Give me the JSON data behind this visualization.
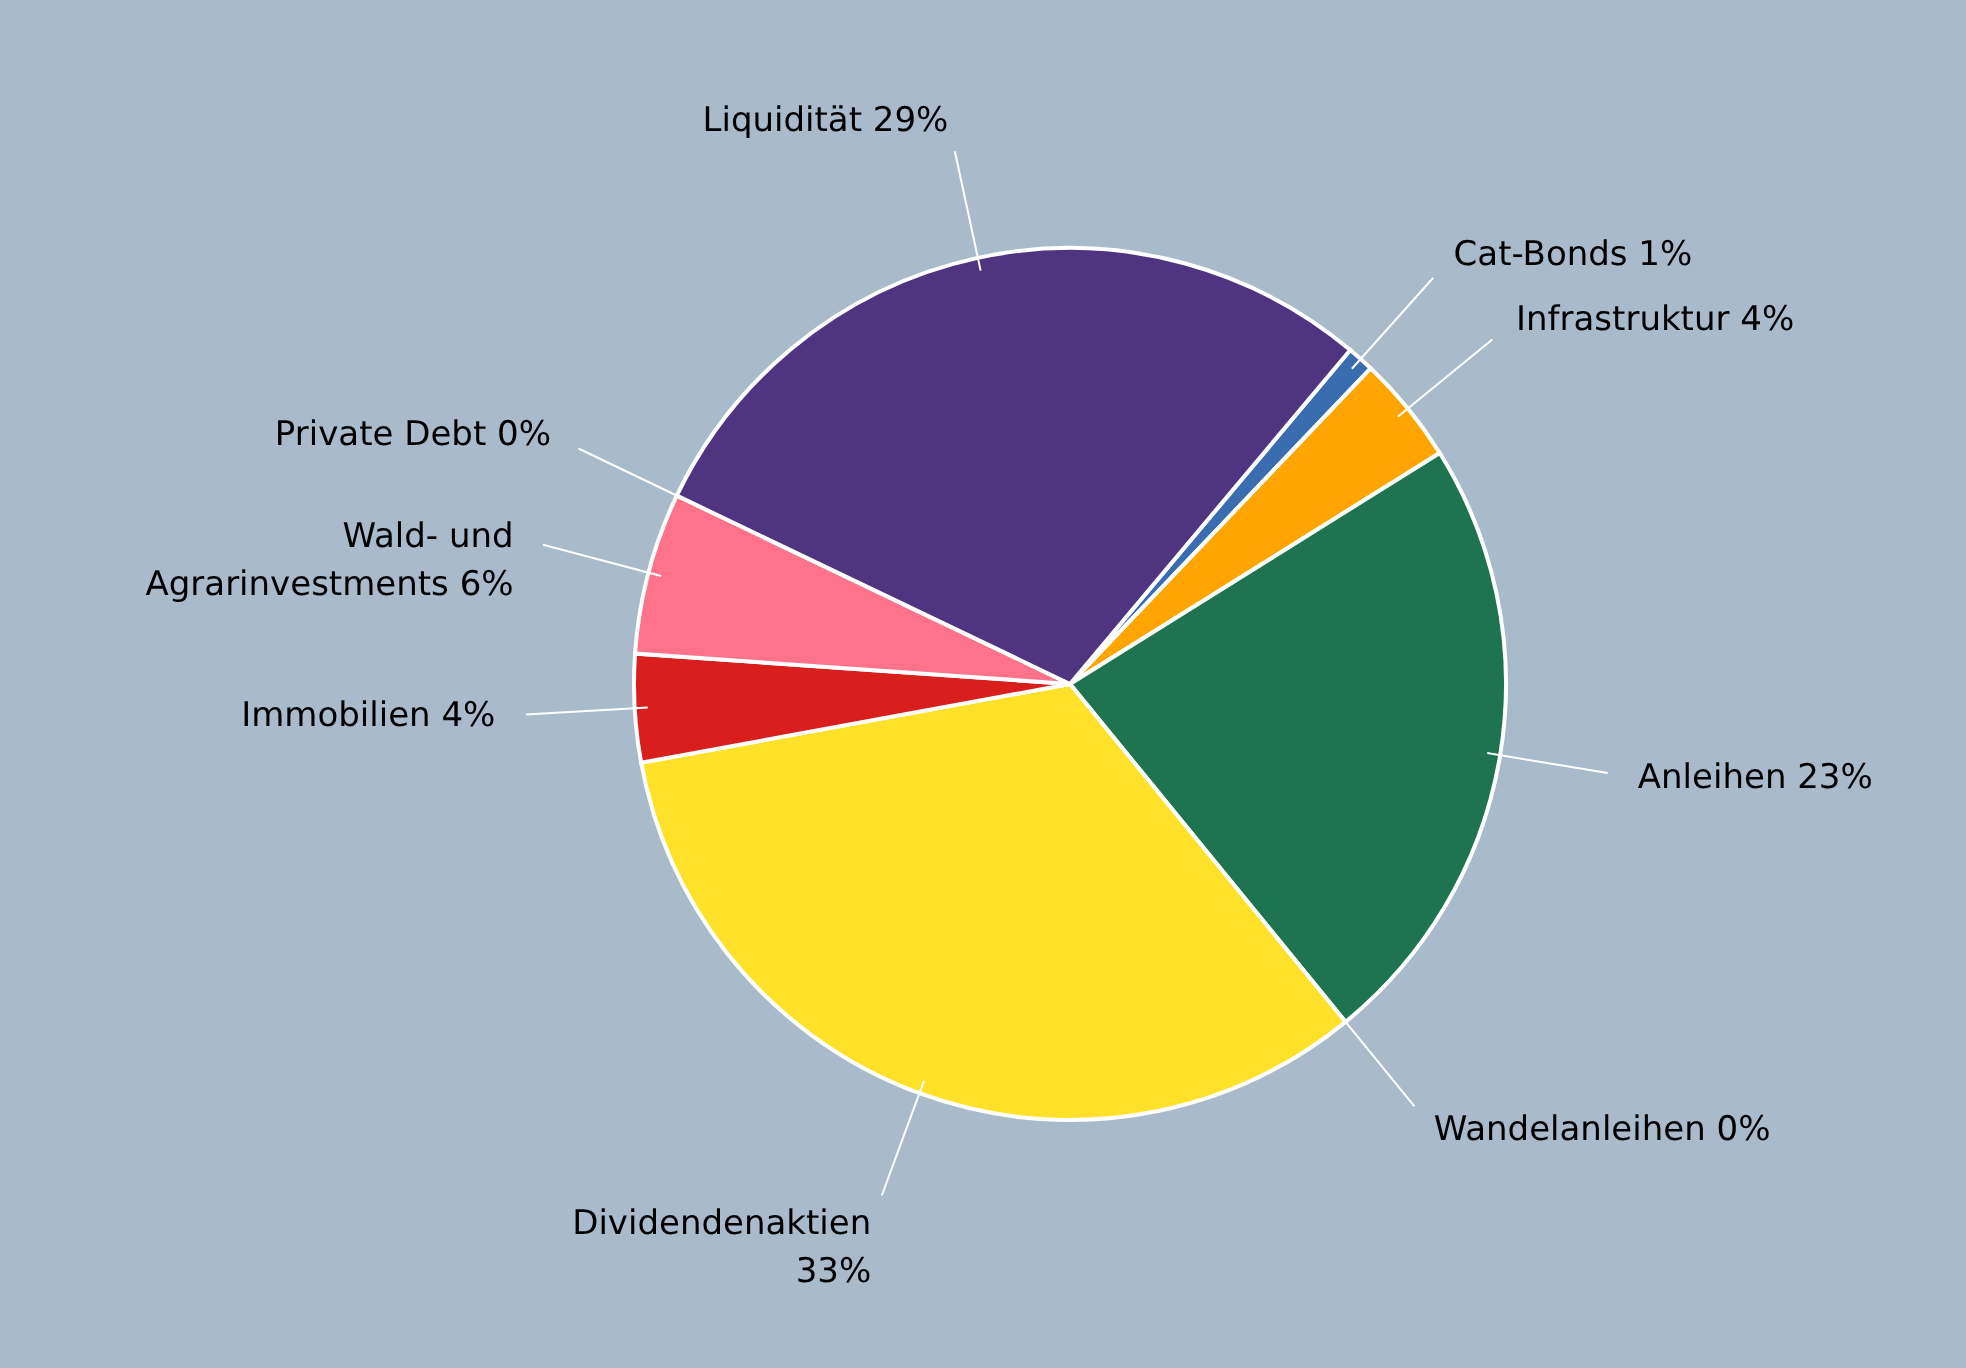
{
  "chart_data": {
    "type": "pie",
    "categories": [
      "Cat-Bonds",
      "Infrastruktur",
      "Anleihen",
      "Wandelanleihen",
      "Dividendenaktien",
      "Immobilien",
      "Wald- und Agrarinvestments",
      "Private Debt",
      "Liquidität"
    ],
    "values": [
      1,
      4,
      23,
      0,
      33,
      4,
      6,
      0,
      29
    ],
    "value_labels": [
      "1%",
      "4%",
      "23%",
      "0%",
      "33%",
      "4%",
      "6%",
      "0%",
      "29%"
    ],
    "colors": [
      "#3a6db0",
      "#ffa500",
      "#1e7350",
      "#7f7f7f",
      "#ffe12a",
      "#d91e1e",
      "#ff738a",
      "#a5a5a5",
      "#4f3580"
    ]
  }
}
